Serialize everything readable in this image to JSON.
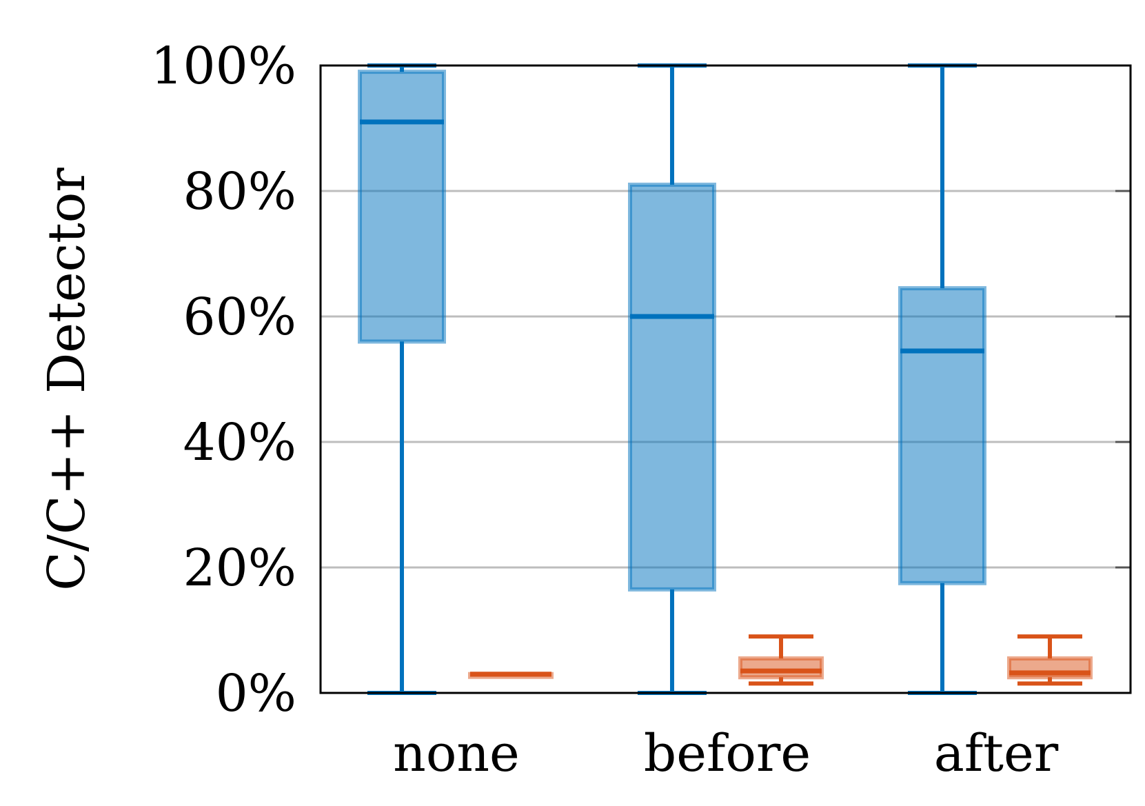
{
  "chart_data": {
    "type": "boxplot",
    "title": "",
    "xlabel": "",
    "ylabel": "C/C++ Detector",
    "ylim": [
      0,
      100
    ],
    "y_ticks": [
      "0%",
      "20%",
      "40%",
      "60%",
      "80%",
      "100%"
    ],
    "y_tick_values": [
      0,
      20,
      40,
      60,
      80,
      100
    ],
    "grid": "horizontal",
    "categories": [
      "none",
      "before",
      "after"
    ],
    "series": [
      {
        "color": "#0072bd",
        "boxes": [
          {
            "whisker_low": 0,
            "q1": 56,
            "median": 91,
            "q3": 99,
            "whisker_high": 100
          },
          {
            "whisker_low": 0,
            "q1": 16.5,
            "median": 60,
            "q3": 81,
            "whisker_high": 100
          },
          {
            "whisker_low": 0,
            "q1": 17.5,
            "median": 54.5,
            "q3": 64.5,
            "whisker_high": 100
          }
        ]
      },
      {
        "color": "#d95319",
        "boxes": [
          {
            "whisker_low": 3,
            "q1": 3,
            "median": 3,
            "q3": 3,
            "whisker_high": 3
          },
          {
            "whisker_low": 1.5,
            "q1": 2.5,
            "median": 3.5,
            "q3": 5.5,
            "whisker_high": 9
          },
          {
            "whisker_low": 1.5,
            "q1": 2.5,
            "median": 3.2,
            "q3": 5.5,
            "whisker_high": 9
          }
        ]
      }
    ]
  }
}
